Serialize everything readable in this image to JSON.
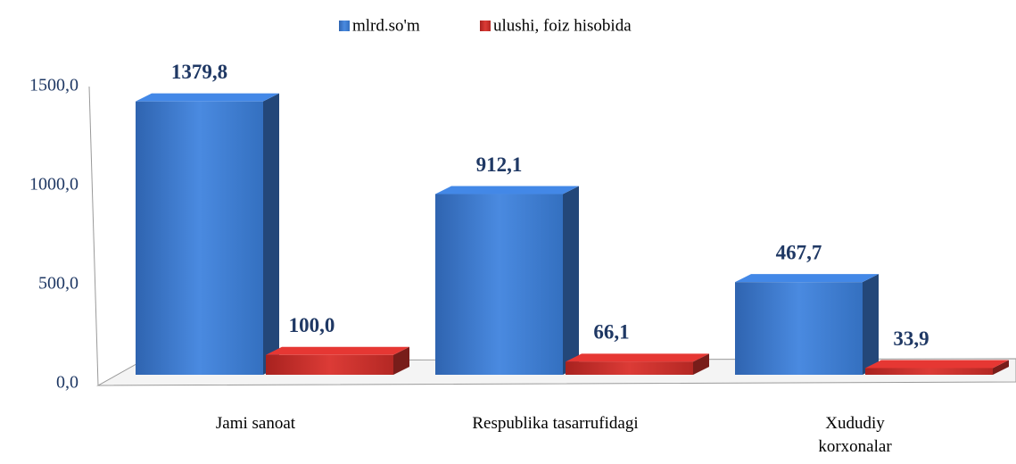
{
  "chart_data": {
    "type": "bar3d",
    "categories": [
      "Jami sanoat",
      "Respublika tasarrufidagi",
      "Xududiy korxonalar"
    ],
    "series": [
      {
        "name": "mlrd.so'm",
        "color": "#3a76c9",
        "values": [
          1379.8,
          912.1,
          467.7
        ],
        "value_labels": [
          "1379,8",
          "912,1",
          "467,7"
        ]
      },
      {
        "name": "ulushi, foiz hisobida",
        "color": "#c8302c",
        "values": [
          100.0,
          66.1,
          33.9
        ],
        "value_labels": [
          "100,0",
          "66,1",
          "33,9"
        ]
      }
    ],
    "ylim": [
      0,
      1500
    ],
    "yticks": [
      {
        "value": 0,
        "label": "0,0"
      },
      {
        "value": 500,
        "label": "500,0"
      },
      {
        "value": 1000,
        "label": "1000,0"
      },
      {
        "value": 1500,
        "label": "1500,0"
      }
    ],
    "legend": "top"
  }
}
